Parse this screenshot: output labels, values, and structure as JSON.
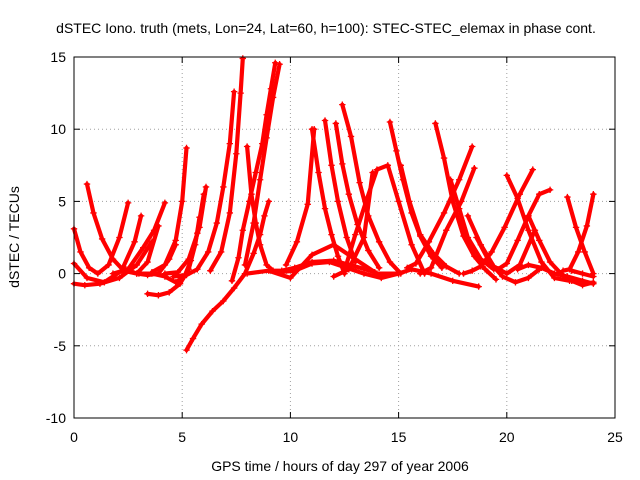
{
  "chart_data": {
    "type": "scatter",
    "title": "dSTEC Iono. truth (mets, Lon=24, Lat=60, h=100): STEC-STEC_elemax in phase cont.",
    "xlabel": "GPS time / hours of day 297 of year 2006",
    "ylabel": "dSTEC  / TECUs",
    "xlim": [
      0,
      25
    ],
    "ylim": [
      -10,
      15
    ],
    "xticks": [
      0,
      5,
      10,
      15,
      20,
      25
    ],
    "yticks": [
      -10,
      -5,
      0,
      5,
      10,
      15
    ],
    "xtick_labels": [
      "0",
      "5",
      "10",
      "15",
      "20",
      "25"
    ],
    "ytick_labels": [
      "-10",
      "-5",
      "0",
      "5",
      "10",
      "15"
    ],
    "grid": true,
    "marker": "plus",
    "color": "#ff0000",
    "series": [
      {
        "x": [
          0.0,
          0.3,
          0.7,
          1.1,
          1.6,
          2.1,
          2.5
        ],
        "y": [
          3.1,
          1.5,
          0.4,
          0.0,
          0.6,
          2.5,
          4.9
        ]
      },
      {
        "x": [
          0.0,
          0.6,
          1.4,
          2.2,
          2.8,
          3.1
        ],
        "y": [
          0.7,
          -0.3,
          -0.6,
          0.2,
          2.2,
          4.0
        ]
      },
      {
        "x": [
          0.0,
          0.5,
          1.2,
          2.1,
          2.9,
          3.6
        ],
        "y": [
          -0.7,
          -0.8,
          -0.7,
          -0.3,
          0.6,
          2.2
        ]
      },
      {
        "x": [
          0.6,
          0.9,
          1.3,
          1.8,
          2.3,
          2.9,
          3.4,
          3.9
        ],
        "y": [
          6.2,
          4.2,
          2.4,
          1.0,
          0.2,
          0.0,
          0.8,
          3.3
        ]
      },
      {
        "x": [
          1.8,
          2.5,
          3.2,
          3.7,
          4.2
        ],
        "y": [
          0.0,
          0.3,
          1.8,
          3.0,
          4.9
        ]
      },
      {
        "x": [
          2.4,
          2.9,
          3.4,
          3.9,
          4.4,
          4.7
        ],
        "y": [
          0.3,
          0.0,
          -0.1,
          0.0,
          1.0,
          2.0
        ]
      },
      {
        "x": [
          3.4,
          3.9,
          4.4,
          4.9,
          5.3,
          5.6,
          5.8
        ],
        "y": [
          -1.4,
          -1.5,
          -1.3,
          -0.7,
          0.3,
          2.0,
          3.9
        ]
      },
      {
        "x": [
          3.0,
          3.6,
          4.2,
          4.7,
          5.1,
          5.4,
          5.7,
          6.0
        ],
        "y": [
          0.0,
          0.0,
          -0.2,
          -0.6,
          -0.2,
          0.9,
          2.8,
          5.5
        ]
      },
      {
        "x": [
          3.6,
          4.2,
          4.7,
          5.0,
          5.2
        ],
        "y": [
          0.1,
          0.6,
          2.3,
          5.0,
          8.7
        ]
      },
      {
        "x": [
          4.2,
          4.8,
          5.3,
          5.8,
          6.1
        ],
        "y": [
          0.0,
          0.1,
          1.0,
          3.2,
          6.0
        ]
      },
      {
        "x": [
          4.6,
          5.2,
          5.7,
          6.2,
          6.6,
          6.9,
          7.2,
          7.4
        ],
        "y": [
          -0.2,
          -0.1,
          0.3,
          1.5,
          3.5,
          6.0,
          9.0,
          12.6
        ]
      },
      {
        "x": [
          5.2,
          5.5,
          5.9,
          6.4,
          6.9,
          7.4,
          7.9,
          8.3,
          8.6,
          8.8,
          9.0
        ],
        "y": [
          -5.3,
          -4.5,
          -3.5,
          -2.6,
          -1.9,
          -1.0,
          0.0,
          1.4,
          2.7,
          4.0,
          5.0
        ]
      },
      {
        "x": [
          6.3,
          6.8,
          7.2,
          7.5,
          7.7,
          7.8
        ],
        "y": [
          0.2,
          1.5,
          4.2,
          8.3,
          12.5,
          14.9
        ]
      },
      {
        "x": [
          7.3,
          7.6,
          7.8,
          8.1,
          8.4,
          8.7,
          8.9,
          9.1,
          9.3
        ],
        "y": [
          -0.5,
          1.1,
          3.0,
          5.0,
          7.0,
          9.0,
          11.0,
          12.8,
          14.6
        ]
      },
      {
        "x": [
          7.9,
          8.3,
          8.6,
          8.9,
          9.2,
          9.5
        ],
        "y": [
          0.6,
          3.5,
          6.5,
          9.4,
          12.2,
          14.5
        ]
      },
      {
        "x": [
          8.0,
          8.2,
          8.4,
          8.6,
          8.9,
          9.2,
          9.6,
          10.2,
          11.0,
          12.0,
          13.0,
          13.9
        ],
        "y": [
          8.8,
          5.5,
          3.5,
          2.0,
          0.6,
          0.2,
          0.2,
          0.4,
          0.8,
          0.9,
          0.5,
          0.1
        ]
      },
      {
        "x": [
          9.5,
          10.2,
          11.0,
          11.8,
          12.6,
          13.4,
          14.2,
          15.0
        ],
        "y": [
          0.1,
          0.2,
          0.7,
          0.8,
          0.4,
          0.0,
          -0.3,
          0.0
        ]
      },
      {
        "x": [
          8.0,
          9.0,
          10.0,
          11.0,
          12.0,
          13.0,
          14.0,
          15.0,
          15.6,
          16.5,
          17.5,
          18.7
        ],
        "y": [
          0.0,
          0.2,
          -0.3,
          1.3,
          2.0,
          1.0,
          0.0,
          0.0,
          0.3,
          0.0,
          -0.5,
          -0.9
        ]
      },
      {
        "x": [
          9.8,
          10.3,
          10.8,
          11.1
        ],
        "y": [
          0.6,
          2.2,
          4.8,
          10.0
        ]
      },
      {
        "x": [
          11.0,
          11.3,
          11.6,
          11.9,
          12.2,
          12.5
        ],
        "y": [
          10.0,
          7.0,
          4.5,
          2.7,
          1.2,
          0.0
        ]
      },
      {
        "x": [
          11.6,
          11.9,
          12.2,
          12.6,
          13.0
        ],
        "y": [
          10.6,
          7.5,
          5.0,
          2.5,
          0.8
        ]
      },
      {
        "x": [
          12.1,
          12.4,
          12.7,
          13.1,
          13.6,
          14.1
        ],
        "y": [
          10.4,
          7.6,
          5.5,
          3.4,
          1.6,
          0.4
        ]
      },
      {
        "x": [
          12.4,
          12.8,
          13.2,
          13.6,
          14.1,
          14.6,
          15.1
        ],
        "y": [
          11.7,
          9.5,
          6.3,
          4.0,
          2.2,
          0.8,
          0.0
        ]
      },
      {
        "x": [
          12.6,
          13.0,
          13.5,
          14.0,
          14.5,
          15.0,
          15.6,
          16.2
        ],
        "y": [
          0.7,
          2.7,
          5.0,
          7.2,
          7.5,
          5.0,
          2.0,
          0.0
        ]
      },
      {
        "x": [
          12.0,
          12.7,
          13.4,
          13.8
        ],
        "y": [
          -0.2,
          0.3,
          2.5,
          7.0
        ]
      },
      {
        "x": [
          14.6,
          14.9,
          15.2,
          15.6,
          16.0,
          16.5,
          17.0
        ],
        "y": [
          10.5,
          8.5,
          6.5,
          4.2,
          2.6,
          1.2,
          0.4
        ]
      },
      {
        "x": [
          15.1,
          15.5,
          16.0,
          16.6,
          17.2,
          17.8
        ],
        "y": [
          7.5,
          5.0,
          2.7,
          1.4,
          0.5,
          0.0
        ]
      },
      {
        "x": [
          15.4,
          15.8,
          16.4,
          17.1,
          17.8,
          18.4
        ],
        "y": [
          0.4,
          0.7,
          2.2,
          4.2,
          6.5,
          8.8
        ]
      },
      {
        "x": [
          16.7,
          17.1,
          17.5,
          18.0,
          18.5,
          19.0,
          19.5
        ],
        "y": [
          10.4,
          8.0,
          5.0,
          2.6,
          1.2,
          0.3,
          -0.4
        ]
      },
      {
        "x": [
          16.0,
          16.5,
          17.2,
          17.9,
          18.5
        ],
        "y": [
          0.0,
          0.4,
          3.0,
          5.0,
          7.3
        ]
      },
      {
        "x": [
          17.4,
          17.8,
          18.2,
          18.8,
          19.4
        ],
        "y": [
          6.5,
          4.5,
          2.5,
          1.0,
          0.3
        ]
      },
      {
        "x": [
          18.0,
          18.4,
          18.8,
          19.3,
          19.9,
          20.6,
          21.2
        ],
        "y": [
          0.0,
          0.2,
          0.5,
          1.5,
          3.2,
          5.5,
          7.2
        ]
      },
      {
        "x": [
          19.6,
          20.0,
          20.5,
          21.0,
          21.5,
          22.0
        ],
        "y": [
          0.3,
          0.7,
          2.3,
          4.0,
          5.5,
          5.8
        ]
      },
      {
        "x": [
          18.2,
          18.8,
          19.4,
          20.0,
          20.6,
          21.3
        ],
        "y": [
          4.0,
          2.0,
          0.5,
          0.0,
          0.6,
          3.0
        ]
      },
      {
        "x": [
          18.6,
          19.2,
          19.8,
          20.4,
          21.0,
          21.5
        ],
        "y": [
          2.5,
          0.8,
          -0.2,
          -0.6,
          -0.3,
          0.3
        ]
      },
      {
        "x": [
          20.0,
          20.5,
          21.0,
          21.6,
          22.2,
          22.9
        ],
        "y": [
          6.8,
          5.2,
          3.0,
          0.8,
          -0.3,
          -0.5
        ]
      },
      {
        "x": [
          20.5,
          21.0,
          21.6,
          22.2,
          22.8,
          23.5,
          24.0
        ],
        "y": [
          0.3,
          0.6,
          0.4,
          0.0,
          -0.2,
          -0.5,
          -0.7
        ]
      },
      {
        "x": [
          21.0,
          21.5,
          22.0,
          22.5,
          23.0,
          23.5,
          24.0
        ],
        "y": [
          4.0,
          2.3,
          0.8,
          0.0,
          -0.5,
          -0.8,
          -0.6
        ]
      },
      {
        "x": [
          22.6,
          22.9,
          23.3,
          23.7,
          24.0
        ],
        "y": [
          0.2,
          0.3,
          1.5,
          3.3,
          5.5
        ]
      },
      {
        "x": [
          22.8,
          23.2,
          23.6,
          24.0
        ],
        "y": [
          5.3,
          3.2,
          1.5,
          0.0
        ]
      },
      {
        "x": [
          23.0,
          23.5,
          24.0
        ],
        "y": [
          0.2,
          0.0,
          -0.2
        ]
      }
    ]
  }
}
